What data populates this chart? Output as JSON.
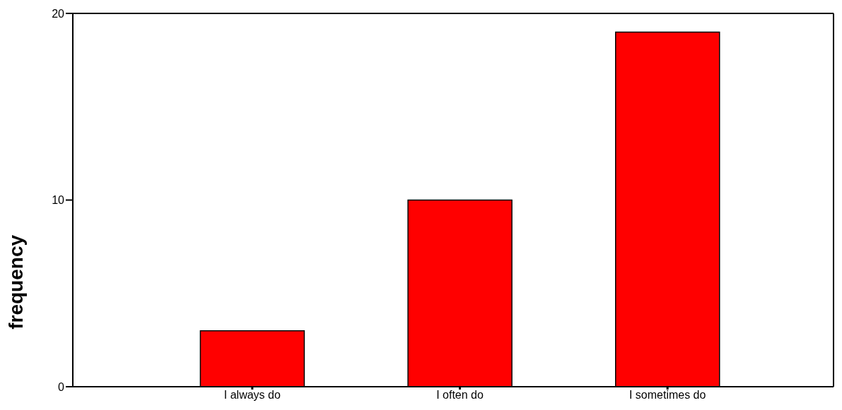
{
  "chart_data": {
    "type": "bar",
    "ylabel": "frequency",
    "categories": [
      "I always do",
      "I often do",
      "I sometimes do"
    ],
    "values": [
      3,
      10,
      19
    ],
    "color": "#ff0000",
    "ylim": [
      0,
      20
    ],
    "yticks": [
      0,
      10,
      20
    ],
    "grid": false,
    "legend": false
  }
}
